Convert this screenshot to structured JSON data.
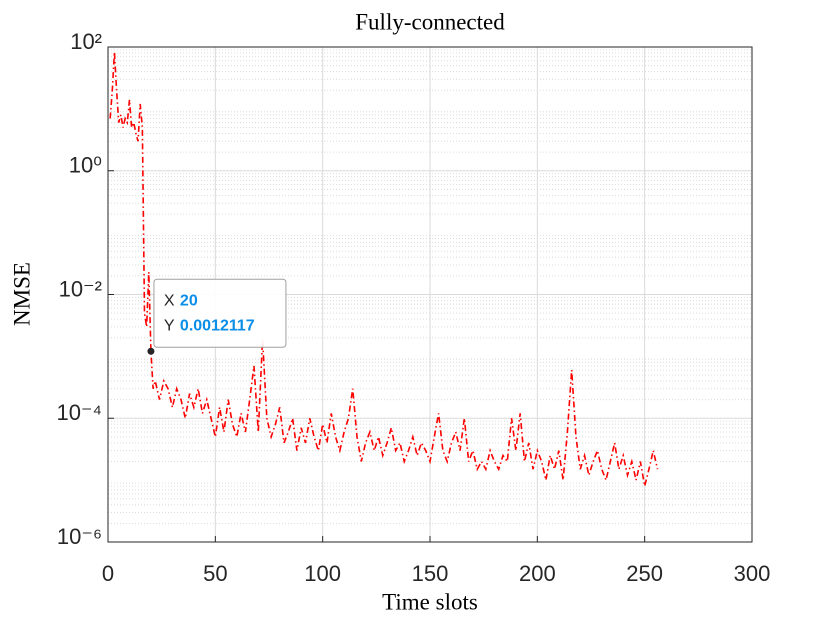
{
  "chart_data": {
    "type": "line",
    "title": "Fully-connected",
    "x_label": "Time slots",
    "y_label": "NMSE",
    "yscale": "log",
    "grid": true,
    "minor_grid": true,
    "xlim": [
      0,
      300
    ],
    "xticks": [
      0,
      50,
      100,
      150,
      200,
      250,
      300
    ],
    "ylim": [
      1e-06,
      100
    ],
    "yticks": [
      {
        "value": 1e-06,
        "label": "10⁻⁶"
      },
      {
        "value": 0.0001,
        "label": "10⁻⁴"
      },
      {
        "value": 0.01,
        "label": "10⁻²"
      },
      {
        "value": 1,
        "label": "10⁰"
      },
      {
        "value": 100,
        "label": "10²"
      }
    ],
    "series": [
      {
        "color": "#ff0000",
        "linestyle": "dashdot",
        "x": [
          1,
          2,
          3,
          4,
          5,
          6,
          7,
          8,
          9,
          10,
          11,
          12,
          13,
          14,
          15,
          16,
          17,
          18,
          19,
          20,
          21,
          22,
          24,
          26,
          28,
          30,
          32,
          34,
          36,
          38,
          40,
          42,
          44,
          46,
          48,
          50,
          52,
          54,
          56,
          58,
          60,
          62,
          64,
          66,
          68,
          70,
          72,
          74,
          76,
          78,
          80,
          82,
          84,
          86,
          88,
          90,
          92,
          94,
          96,
          98,
          100,
          102,
          104,
          106,
          108,
          110,
          112,
          114,
          116,
          118,
          120,
          122,
          124,
          126,
          128,
          130,
          132,
          134,
          136,
          138,
          140,
          142,
          144,
          146,
          148,
          150,
          152,
          154,
          156,
          158,
          160,
          162,
          164,
          166,
          168,
          170,
          172,
          174,
          176,
          178,
          180,
          182,
          184,
          186,
          188,
          190,
          192,
          194,
          196,
          198,
          200,
          202,
          204,
          206,
          208,
          210,
          212,
          214,
          216,
          218,
          220,
          222,
          224,
          226,
          228,
          230,
          232,
          234,
          236,
          238,
          240,
          242,
          244,
          246,
          248,
          250,
          252,
          254,
          256
        ],
        "values": [
          7,
          20,
          83,
          20,
          6,
          8,
          5,
          7,
          6,
          14,
          5,
          6,
          4,
          3,
          12,
          5,
          0.005,
          0.003,
          0.023,
          0.0012117,
          0.0003,
          0.0004,
          0.0002,
          0.0004,
          0.0003,
          0.00015,
          0.0003,
          0.0002,
          0.0001,
          0.00025,
          0.00015,
          0.0003,
          0.00012,
          0.0002,
          0.0001,
          5e-05,
          0.00015,
          6e-05,
          0.0002,
          8e-05,
          5e-05,
          0.00012,
          6e-05,
          0.0002,
          0.0007,
          6e-05,
          0.0019,
          0.0001,
          5e-05,
          8e-05,
          0.00015,
          4e-05,
          6e-05,
          0.0001,
          3e-05,
          7e-05,
          4e-05,
          0.0001,
          5e-05,
          3e-05,
          8e-05,
          4e-05,
          0.00012,
          5e-05,
          3e-05,
          6e-05,
          0.0001,
          0.0003,
          5e-05,
          2e-05,
          4e-05,
          6e-05,
          3e-05,
          5e-05,
          2.5e-05,
          4e-05,
          7e-05,
          3e-05,
          4e-05,
          2e-05,
          3e-05,
          5e-05,
          2.5e-05,
          4e-05,
          3e-05,
          2e-05,
          5e-05,
          0.00012,
          3e-05,
          2e-05,
          4e-05,
          6e-05,
          3e-05,
          0.0001,
          2e-05,
          3e-05,
          1.5e-05,
          2e-05,
          1.5e-05,
          3e-05,
          2e-05,
          1.5e-05,
          2.5e-05,
          2e-05,
          0.0001,
          3e-05,
          0.00012,
          2e-05,
          4e-05,
          1.5e-05,
          3e-05,
          2e-05,
          1e-05,
          2.5e-05,
          1.5e-05,
          3e-05,
          1e-05,
          6e-05,
          0.0006,
          5e-05,
          1.5e-05,
          2.5e-05,
          1.2e-05,
          2e-05,
          3e-05,
          1.5e-05,
          1e-05,
          2e-05,
          4e-05,
          1.5e-05,
          2.5e-05,
          1.2e-05,
          2e-05,
          1e-05,
          2e-05,
          8e-06,
          1.5e-05,
          3e-05,
          1.5e-05
        ]
      }
    ],
    "datatip": {
      "x_label": "X",
      "x": 20,
      "y_label": "Y",
      "y": 0.0012117
    }
  }
}
